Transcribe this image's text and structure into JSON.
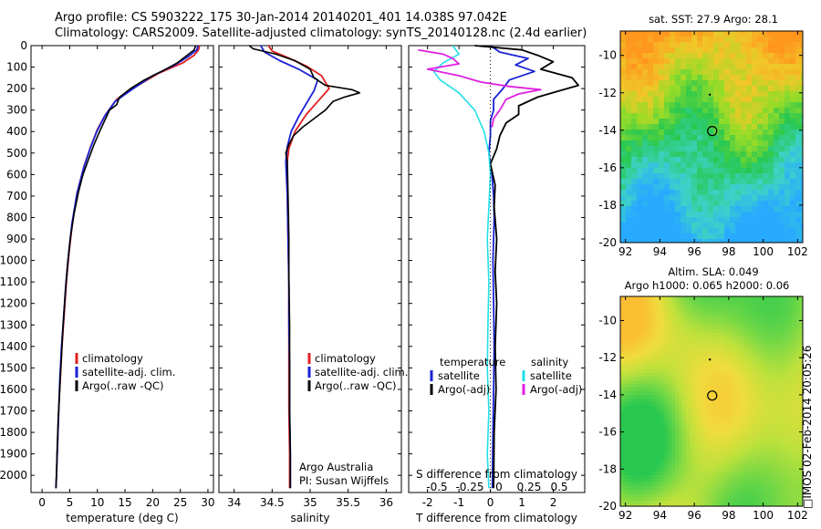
{
  "header": {
    "line1": "Argo profile: CS 5903222_175 30-Jan-2014 20140201_401 14.038S 97.042E",
    "line2": "Climatology: CARS2009. Satellite-adjusted climatology: synTS_20140128.nc (2.4d earlier)"
  },
  "footer_stamp": "□IMOS 02-Feb-2014 20:05:26",
  "colors": {
    "climatology": "#e02020",
    "satellite": "#1a22d6",
    "argo": "#000000",
    "sat_salinity": "#22e0e8",
    "argo_salinity": "#e020e0"
  },
  "chart_data": [
    {
      "type": "line",
      "name": "temperature",
      "xlabel": "temperature (deg C)",
      "ylabel": "",
      "xlim": [
        -2,
        31
      ],
      "ylim": [
        0,
        2080
      ],
      "xticks": [
        0,
        5,
        10,
        15,
        20,
        25,
        30
      ],
      "yticks": [
        0,
        100,
        200,
        300,
        400,
        500,
        600,
        700,
        800,
        900,
        1000,
        1100,
        1200,
        1300,
        1400,
        1500,
        1600,
        1700,
        1800,
        1900,
        2000
      ],
      "legend": [
        "climatology",
        "satellite-adj. clim.",
        "Argo(..raw -QC)"
      ],
      "series": [
        {
          "name": "climatology",
          "color": "#e02020",
          "points": [
            [
              28.5,
              0
            ],
            [
              28.3,
              20
            ],
            [
              27.5,
              45
            ],
            [
              25.5,
              80
            ],
            [
              21,
              130
            ],
            [
              17,
              190
            ],
            [
              13.5,
              250
            ],
            [
              11.5,
              320
            ],
            [
              10,
              390
            ],
            [
              8.8,
              470
            ],
            [
              7.6,
              560
            ],
            [
              6.4,
              680
            ],
            [
              5.5,
              820
            ],
            [
              4.9,
              960
            ],
            [
              4.4,
              1100
            ],
            [
              4,
              1250
            ],
            [
              3.6,
              1400
            ],
            [
              3.3,
              1550
            ],
            [
              3,
              1700
            ],
            [
              2.8,
              1850
            ],
            [
              2.6,
              2000
            ],
            [
              2.5,
              2060
            ]
          ]
        },
        {
          "name": "satellite-adj. clim.",
          "color": "#1a22d6",
          "points": [
            [
              28.2,
              0
            ],
            [
              28,
              20
            ],
            [
              26.5,
              50
            ],
            [
              24,
              90
            ],
            [
              20,
              140
            ],
            [
              16.5,
              200
            ],
            [
              13.2,
              260
            ],
            [
              11.3,
              330
            ],
            [
              9.9,
              400
            ],
            [
              8.7,
              480
            ],
            [
              7.5,
              570
            ],
            [
              6.3,
              690
            ],
            [
              5.4,
              830
            ],
            [
              4.8,
              970
            ],
            [
              4.3,
              1110
            ],
            [
              3.9,
              1260
            ],
            [
              3.5,
              1410
            ],
            [
              3.2,
              1560
            ],
            [
              3,
              1710
            ],
            [
              2.8,
              1860
            ],
            [
              2.6,
              2000
            ],
            [
              2.5,
              2060
            ]
          ]
        },
        {
          "name": "Argo(..raw -QC)",
          "color": "#000000",
          "points": [
            [
              27.8,
              0
            ],
            [
              27.5,
              20
            ],
            [
              26,
              50
            ],
            [
              24.5,
              80
            ],
            [
              22,
              115
            ],
            [
              18.5,
              160
            ],
            [
              16,
              200
            ],
            [
              14,
              240
            ],
            [
              13.5,
              275
            ],
            [
              12.2,
              300
            ],
            [
              11.3,
              350
            ],
            [
              10.4,
              400
            ],
            [
              9.4,
              460
            ],
            [
              8.4,
              530
            ],
            [
              7.4,
              600
            ],
            [
              6.6,
              680
            ],
            [
              5.8,
              780
            ],
            [
              5.1,
              900
            ],
            [
              4.6,
              1020
            ],
            [
              4.2,
              1150
            ],
            [
              3.8,
              1300
            ],
            [
              3.5,
              1450
            ],
            [
              3.2,
              1600
            ],
            [
              2.9,
              1750
            ],
            [
              2.7,
              1900
            ],
            [
              2.6,
              2000
            ],
            [
              2.5,
              2060
            ]
          ]
        }
      ]
    },
    {
      "type": "line",
      "name": "salinity",
      "xlabel": "salinity",
      "xlim": [
        33.8,
        36.2
      ],
      "ylim": [
        0,
        2080
      ],
      "xticks": [
        34,
        34.5,
        35,
        35.5,
        36
      ],
      "yticks": [
        0,
        100,
        200,
        300,
        400,
        500,
        600,
        700,
        800,
        900,
        1000,
        1100,
        1200,
        1300,
        1400,
        1500,
        1600,
        1700,
        1800,
        1900,
        2000
      ],
      "legend": [
        "climatology",
        "satellite-adj. clim.",
        "Argo(..raw -QC)"
      ],
      "annotations": [
        "Argo Australia",
        "PI: Susan Wijffels"
      ],
      "series": [
        {
          "name": "climatology",
          "color": "#e02020",
          "points": [
            [
              34.45,
              0
            ],
            [
              34.5,
              25
            ],
            [
              34.7,
              55
            ],
            [
              34.95,
              95
            ],
            [
              35.15,
              140
            ],
            [
              35.25,
              200
            ],
            [
              35.1,
              260
            ],
            [
              34.95,
              320
            ],
            [
              34.8,
              400
            ],
            [
              34.72,
              480
            ],
            [
              34.69,
              560
            ],
            [
              34.7,
              700
            ],
            [
              34.71,
              900
            ],
            [
              34.72,
              1100
            ],
            [
              34.72,
              1300
            ],
            [
              34.72,
              1500
            ],
            [
              34.72,
              1700
            ],
            [
              34.73,
              1900
            ],
            [
              34.73,
              2060
            ]
          ]
        },
        {
          "name": "satellite-adj. clim.",
          "color": "#1a22d6",
          "points": [
            [
              34.35,
              0
            ],
            [
              34.4,
              30
            ],
            [
              34.6,
              70
            ],
            [
              34.85,
              110
            ],
            [
              35.1,
              160
            ],
            [
              35.05,
              210
            ],
            [
              34.95,
              270
            ],
            [
              34.85,
              330
            ],
            [
              34.75,
              400
            ],
            [
              34.7,
              470
            ],
            [
              34.68,
              540
            ],
            [
              34.7,
              700
            ],
            [
              34.71,
              900
            ],
            [
              34.72,
              1100
            ],
            [
              34.72,
              1300
            ],
            [
              34.73,
              1500
            ],
            [
              34.73,
              1700
            ],
            [
              34.74,
              1900
            ],
            [
              34.74,
              2060
            ]
          ]
        },
        {
          "name": "Argo(..raw -QC)",
          "color": "#000000",
          "points": [
            [
              34.2,
              0
            ],
            [
              34.25,
              15
            ],
            [
              34.55,
              40
            ],
            [
              34.8,
              70
            ],
            [
              35.0,
              110
            ],
            [
              35.05,
              150
            ],
            [
              35.2,
              185
            ],
            [
              35.55,
              205
            ],
            [
              35.65,
              220
            ],
            [
              35.45,
              240
            ],
            [
              35.3,
              260
            ],
            [
              35.2,
              300
            ],
            [
              35.05,
              340
            ],
            [
              34.9,
              380
            ],
            [
              34.78,
              420
            ],
            [
              34.72,
              460
            ],
            [
              34.68,
              500
            ],
            [
              34.7,
              540
            ],
            [
              34.71,
              700
            ],
            [
              34.72,
              900
            ],
            [
              34.72,
              1100
            ],
            [
              34.73,
              1300
            ],
            [
              34.73,
              1500
            ],
            [
              34.73,
              1700
            ],
            [
              34.74,
              1900
            ],
            [
              34.74,
              2060
            ]
          ]
        }
      ]
    },
    {
      "type": "line",
      "name": "difference",
      "xlabel": "T difference from climatology",
      "xlabel_top": "S difference from climatology",
      "xlim": [
        -2.6,
        3.0
      ],
      "ylim": [
        0,
        2080
      ],
      "xticks": [
        -2,
        -1,
        0,
        1,
        2
      ],
      "xticks_s": [
        -0.5,
        -0.25,
        0,
        0.25,
        0.5
      ],
      "yticks": [
        0,
        100,
        200,
        300,
        400,
        500,
        600,
        700,
        800,
        900,
        1000,
        1100,
        1200,
        1300,
        1400,
        1500,
        1600,
        1700,
        1800,
        1900,
        2000
      ],
      "legend_temperature": {
        "title": "temperature",
        "items": [
          "satellite",
          "Argo(-adj)"
        ]
      },
      "legend_salinity": {
        "title": "salinity",
        "items": [
          "satellite",
          "Argo(-adj)"
        ]
      },
      "series": [
        {
          "name": "T satellite",
          "color": "#1a22d6",
          "points": [
            [
              0,
              0
            ],
            [
              0.3,
              30
            ],
            [
              1.2,
              60
            ],
            [
              0.8,
              90
            ],
            [
              1.4,
              120
            ],
            [
              0.6,
              160
            ],
            [
              0.4,
              200
            ],
            [
              0.1,
              250
            ],
            [
              0.1,
              300
            ],
            [
              0,
              350
            ],
            [
              0,
              420
            ],
            [
              -0.05,
              500
            ],
            [
              0.05,
              600
            ],
            [
              0.1,
              700
            ],
            [
              0.12,
              800
            ],
            [
              0.1,
              900
            ],
            [
              0.08,
              1000
            ],
            [
              0.1,
              1200
            ],
            [
              0.12,
              1400
            ],
            [
              0.1,
              1600
            ],
            [
              0.08,
              1800
            ],
            [
              0.06,
              2060
            ]
          ]
        },
        {
          "name": "T Argo(-adj)",
          "color": "#000000",
          "points": [
            [
              -0.5,
              0
            ],
            [
              1.0,
              20
            ],
            [
              1.5,
              45
            ],
            [
              2.0,
              75
            ],
            [
              1.6,
              110
            ],
            [
              2.6,
              150
            ],
            [
              2.8,
              185
            ],
            [
              2.2,
              210
            ],
            [
              1.5,
              240
            ],
            [
              0.9,
              280
            ],
            [
              0.9,
              320
            ],
            [
              0.5,
              360
            ],
            [
              0.3,
              420
            ],
            [
              0.2,
              480
            ],
            [
              0,
              550
            ],
            [
              0.15,
              650
            ],
            [
              0.12,
              750
            ],
            [
              0.2,
              900
            ],
            [
              0.15,
              1050
            ],
            [
              0.2,
              1200
            ],
            [
              0.15,
              1400
            ],
            [
              0.18,
              1600
            ],
            [
              0.12,
              1800
            ],
            [
              0.1,
              2060
            ]
          ]
        },
        {
          "name": "S satellite",
          "color": "#22e0e8",
          "points": [
            [
              -1.2,
              0
            ],
            [
              -1.0,
              40
            ],
            [
              -1.5,
              80
            ],
            [
              -1.8,
              120
            ],
            [
              -1.6,
              160
            ],
            [
              -1.0,
              220
            ],
            [
              -0.5,
              300
            ],
            [
              -0.2,
              400
            ],
            [
              -0.05,
              500
            ],
            [
              0,
              600
            ],
            [
              -0.05,
              750
            ],
            [
              -0.1,
              900
            ],
            [
              -0.05,
              1100
            ],
            [
              -0.08,
              1300
            ],
            [
              -0.1,
              1500
            ],
            [
              -0.05,
              1700
            ],
            [
              -0.1,
              1900
            ],
            [
              -0.05,
              2060
            ]
          ]
        },
        {
          "name": "S Argo(-adj)",
          "color": "#e020e0",
          "points": [
            [
              -2.3,
              20
            ],
            [
              -1.5,
              40
            ],
            [
              -1.2,
              60
            ],
            [
              -1.0,
              85
            ],
            [
              -2.0,
              110
            ],
            [
              -1.0,
              140
            ],
            [
              -0.3,
              170
            ],
            [
              0.6,
              190
            ],
            [
              1.6,
              205
            ],
            [
              0.9,
              225
            ],
            [
              0.5,
              250
            ],
            [
              0.3,
              300
            ],
            [
              0.1,
              340
            ],
            [
              0.05,
              380
            ]
          ]
        }
      ]
    },
    {
      "type": "heatmap",
      "name": "sst_map",
      "title": "sat. SST: 27.9 Argo: 28.1",
      "xticks": [
        92,
        94,
        96,
        98,
        100,
        102
      ],
      "yticks": [
        -10,
        -12,
        -14,
        -16,
        -18,
        -20
      ],
      "xlim": [
        91.7,
        102.3
      ],
      "ylim": [
        -20,
        -8.7
      ],
      "argo_position": [
        97.04,
        -14.04
      ]
    },
    {
      "type": "heatmap",
      "name": "sla_map",
      "title": "Altim. SLA: 0.049",
      "subtitle": "Argo h1000: 0.065 h2000: 0.06",
      "xticks": [
        92,
        94,
        96,
        98,
        100,
        102
      ],
      "yticks": [
        -10,
        -12,
        -14,
        -16,
        -18,
        -20
      ],
      "xlim": [
        91.7,
        102.3
      ],
      "ylim": [
        -20,
        -8.7
      ],
      "argo_position": [
        97.04,
        -14.04
      ]
    }
  ]
}
